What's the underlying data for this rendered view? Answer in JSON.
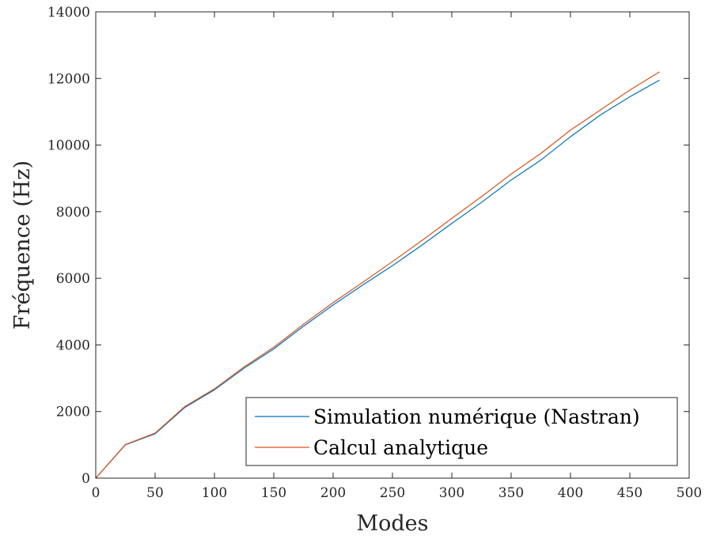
{
  "chart_data": {
    "type": "line",
    "title": "",
    "xlabel": "Modes",
    "ylabel": "Fréquence (Hz)",
    "xlim": [
      0,
      500
    ],
    "ylim": [
      0,
      14000
    ],
    "xticks": [
      0,
      50,
      100,
      150,
      200,
      250,
      300,
      350,
      400,
      450,
      500
    ],
    "yticks": [
      0,
      2000,
      4000,
      6000,
      8000,
      10000,
      12000,
      14000
    ],
    "grid": false,
    "legend_position": "bottom-right",
    "series": [
      {
        "name": "Simulation numérique (Nastran)",
        "color": "#0072BD",
        "x": [
          0,
          25,
          50,
          75,
          100,
          125,
          150,
          175,
          200,
          225,
          250,
          275,
          300,
          325,
          350,
          375,
          400,
          425,
          450,
          475
        ],
        "y": [
          0,
          1000,
          1330,
          2120,
          2650,
          3300,
          3880,
          4560,
          5200,
          5800,
          6380,
          7000,
          7650,
          8280,
          8950,
          9550,
          10250,
          10900,
          11450,
          11950
        ]
      },
      {
        "name": "Calcul analytique",
        "color": "#D95319",
        "x": [
          0,
          25,
          50,
          75,
          100,
          125,
          150,
          175,
          200,
          225,
          250,
          275,
          300,
          325,
          350,
          375,
          400,
          425,
          450,
          475
        ],
        "y": [
          0,
          1010,
          1350,
          2150,
          2680,
          3340,
          3930,
          4620,
          5270,
          5880,
          6500,
          7140,
          7800,
          8450,
          9130,
          9750,
          10450,
          11050,
          11650,
          12200
        ]
      }
    ]
  }
}
